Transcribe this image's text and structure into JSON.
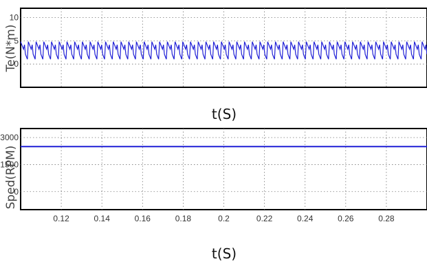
{
  "chart_data": [
    {
      "type": "line",
      "title": "",
      "xlabel": "t(S)",
      "ylabel": "Te(N*m)",
      "xlim": [
        0.1,
        0.3
      ],
      "ylim": [
        -5,
        12
      ],
      "x_ticks": [
        0.12,
        0.14,
        0.16,
        0.18,
        0.2,
        0.22,
        0.24,
        0.26,
        0.28
      ],
      "y_ticks": [
        0,
        5,
        10
      ],
      "y_tick_labels": [
        "0",
        "5",
        "10"
      ],
      "grid": true,
      "series": [
        {
          "color": "#1f1fd6",
          "description_values": {
            "waveform": "sawtooth ripple",
            "mean": 2.5,
            "min": 0.5,
            "max": 4.8,
            "ripple_period": 0.0038
          }
        }
      ]
    },
    {
      "type": "line",
      "title": "",
      "xlabel": "t(S)",
      "ylabel": "Sped(RPM)",
      "xlim": [
        0.1,
        0.3
      ],
      "ylim": [
        -1000,
        3500
      ],
      "x_ticks": [
        0.12,
        0.14,
        0.16,
        0.18,
        0.2,
        0.22,
        0.24,
        0.26,
        0.28
      ],
      "x_tick_labels": [
        "0.12",
        "0.14",
        "0.16",
        "0.18",
        "0.2",
        "0.22",
        "0.24",
        "0.26",
        "0.28"
      ],
      "y_ticks": [
        0,
        1500,
        3000
      ],
      "y_tick_labels": [
        "0",
        "1500",
        "3000"
      ],
      "grid": true,
      "series": [
        {
          "color": "#1f1fd6",
          "x": [
            0.1,
            0.3
          ],
          "y": [
            2500,
            2500
          ]
        }
      ]
    }
  ]
}
